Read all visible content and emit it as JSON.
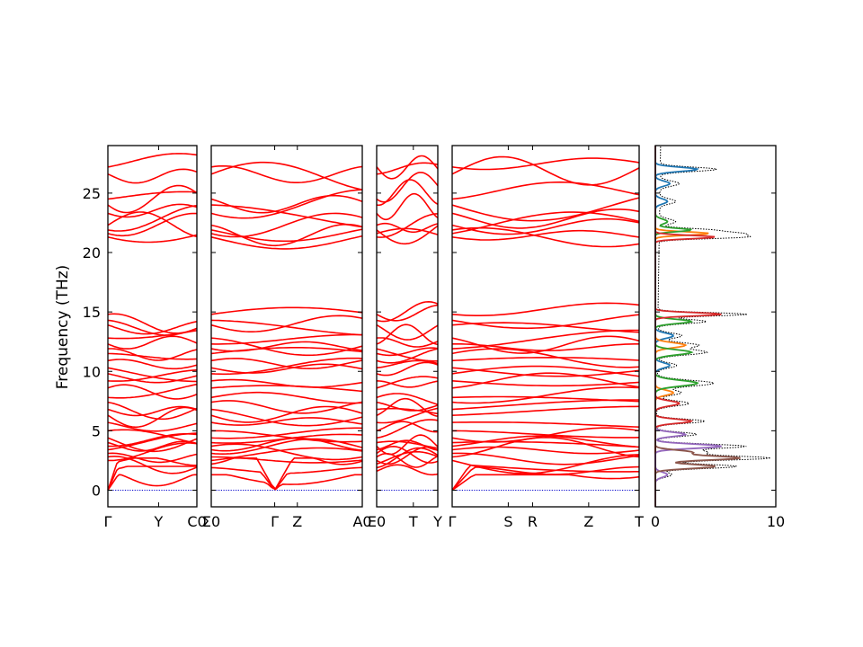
{
  "chart_data": {
    "type": "line",
    "ylabel": "Frequency (THz)",
    "ylim": [
      -1.4,
      29.0
    ],
    "yticks": [
      0,
      5,
      10,
      15,
      20,
      25
    ],
    "band_color": "#ff0000",
    "zero_line_color": "#0000cc",
    "panels": [
      {
        "xlim": [
          0,
          1
        ],
        "ticks": [
          {
            "pos": 0.0,
            "label": "Γ"
          },
          {
            "pos": 0.57,
            "label": "Y"
          },
          {
            "pos": 1.0,
            "label": "C0"
          }
        ]
      },
      {
        "xlim": [
          0,
          1
        ],
        "ticks": [
          {
            "pos": 0.0,
            "label": "Σ0"
          },
          {
            "pos": 0.42,
            "label": "Γ"
          },
          {
            "pos": 0.57,
            "label": "Z"
          },
          {
            "pos": 1.0,
            "label": "A0"
          }
        ]
      },
      {
        "xlim": [
          0,
          1
        ],
        "ticks": [
          {
            "pos": 0.0,
            "label": "E0"
          },
          {
            "pos": 0.6,
            "label": "T"
          },
          {
            "pos": 1.0,
            "label": "Y"
          }
        ]
      },
      {
        "xlim": [
          0,
          1
        ],
        "ticks": [
          {
            "pos": 0.0,
            "label": "Γ"
          },
          {
            "pos": 0.3,
            "label": "S"
          },
          {
            "pos": 0.43,
            "label": "R"
          },
          {
            "pos": 0.73,
            "label": "Z"
          },
          {
            "pos": 1.0,
            "label": "T"
          }
        ]
      }
    ],
    "dos": {
      "xlim": [
        0,
        10
      ],
      "xticks": [
        0,
        10
      ],
      "series_colors": [
        "#1f77b4",
        "#ff7f0e",
        "#2ca02c",
        "#d62728",
        "#9467bd",
        "#8c564b"
      ],
      "total_color": "#000000",
      "peaks": [
        {
          "f": 27.0,
          "w": 0.25,
          "a": 3.5,
          "c": 0
        },
        {
          "f": 25.8,
          "w": 0.3,
          "a": 1.2,
          "c": 0
        },
        {
          "f": 24.3,
          "w": 0.3,
          "a": 1.0,
          "c": 0
        },
        {
          "f": 22.6,
          "w": 0.3,
          "a": 1.0,
          "c": 2
        },
        {
          "f": 21.6,
          "w": 0.2,
          "a": 4.5,
          "c": 1
        },
        {
          "f": 21.3,
          "w": 0.2,
          "a": 5.0,
          "c": 3
        },
        {
          "f": 21.9,
          "w": 0.2,
          "a": 3.0,
          "c": 2
        },
        {
          "f": 14.8,
          "w": 0.2,
          "a": 5.5,
          "c": 3
        },
        {
          "f": 14.2,
          "w": 0.25,
          "a": 3.0,
          "c": 2
        },
        {
          "f": 13.0,
          "w": 0.3,
          "a": 1.5,
          "c": 0
        },
        {
          "f": 12.2,
          "w": 0.3,
          "a": 2.5,
          "c": 1
        },
        {
          "f": 11.6,
          "w": 0.3,
          "a": 3.0,
          "c": 2
        },
        {
          "f": 10.5,
          "w": 0.3,
          "a": 1.2,
          "c": 0
        },
        {
          "f": 9.0,
          "w": 0.35,
          "a": 3.5,
          "c": 2
        },
        {
          "f": 8.2,
          "w": 0.3,
          "a": 1.5,
          "c": 1
        },
        {
          "f": 7.3,
          "w": 0.3,
          "a": 2.0,
          "c": 3
        },
        {
          "f": 5.8,
          "w": 0.25,
          "a": 3.0,
          "c": 3
        },
        {
          "f": 4.7,
          "w": 0.25,
          "a": 2.5,
          "c": 4
        },
        {
          "f": 3.7,
          "w": 0.25,
          "a": 5.5,
          "c": 4
        },
        {
          "f": 3.2,
          "w": 0.25,
          "a": 3.0,
          "c": 5
        },
        {
          "f": 2.7,
          "w": 0.25,
          "a": 7.0,
          "c": 5
        },
        {
          "f": 2.0,
          "w": 0.25,
          "a": 5.0,
          "c": 5
        },
        {
          "f": 1.3,
          "w": 0.3,
          "a": 1.0,
          "c": 4
        }
      ]
    }
  }
}
